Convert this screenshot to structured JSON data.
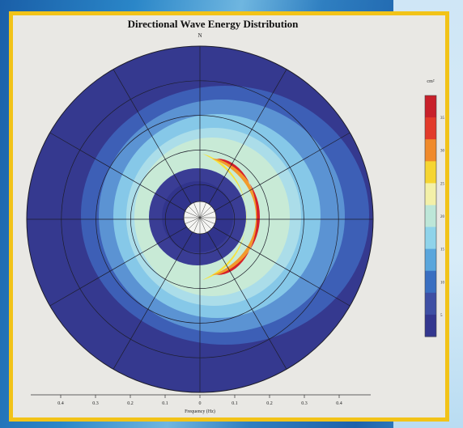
{
  "chart_data": {
    "type": "polar-contour",
    "title": "Directional Wave Energy Distribution",
    "north_label": "N",
    "xlabel": "Frequency (Hz)",
    "x_ticks": [
      "0.4",
      "0.3",
      "0.2",
      "0.1",
      "0",
      "0.1",
      "0.2",
      "0.3",
      "0.4"
    ],
    "colorbar": {
      "unit": "cm²",
      "ticks": [
        "35",
        "30",
        "25",
        "20",
        "15",
        "10",
        "5"
      ],
      "colors": [
        "#c8202a",
        "#e23a2a",
        "#f08a2a",
        "#f6d531",
        "#f3f0a8",
        "#bde6d8",
        "#8fd3ea",
        "#5aa6dc",
        "#3a6fc1",
        "#3e4fa4",
        "#33378f"
      ]
    },
    "energy_peak": {
      "direction": "east",
      "frequency_range": [
        0.08,
        0.18
      ]
    },
    "grid": {
      "rings": 5,
      "spokes": 12
    }
  }
}
